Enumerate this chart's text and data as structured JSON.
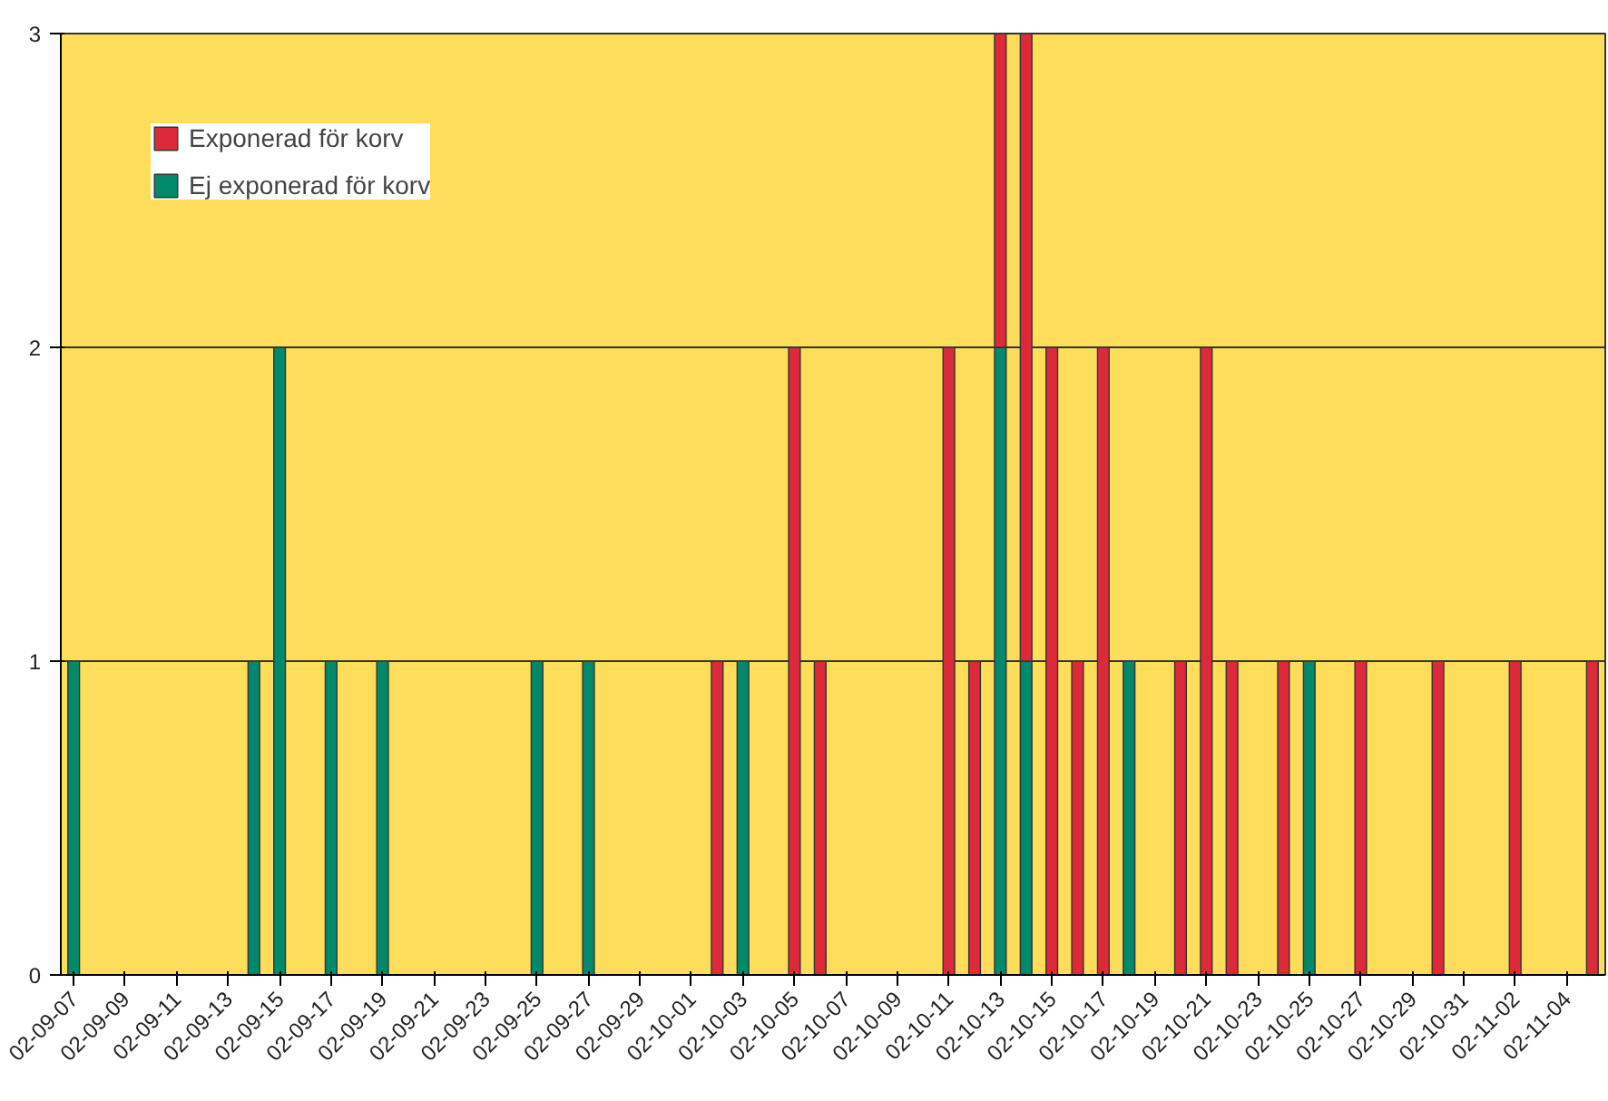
{
  "chart_data": {
    "type": "bar",
    "stacked": true,
    "categories": [
      "02-09-07",
      null,
      "02-09-09",
      null,
      "02-09-11",
      null,
      "02-09-13",
      null,
      "02-09-15",
      null,
      "02-09-17",
      null,
      "02-09-19",
      null,
      "02-09-21",
      null,
      "02-09-23",
      null,
      "02-09-25",
      null,
      "02-09-27",
      null,
      "02-09-29",
      null,
      "02-10-01",
      null,
      "02-10-03",
      null,
      "02-10-05",
      null,
      "02-10-07",
      null,
      "02-10-09",
      null,
      "02-10-11",
      null,
      "02-10-13",
      null,
      "02-10-15",
      null,
      "02-10-17",
      null,
      "02-10-19",
      null,
      "02-10-21",
      null,
      "02-10-23",
      null,
      "02-10-25",
      null,
      "02-10-27",
      null,
      "02-10-29",
      null,
      "02-10-31",
      null,
      "02-11-02",
      null,
      "02-11-04",
      null
    ],
    "series": [
      {
        "name": "Ej exponerad för korv",
        "color": "#00896a",
        "values": [
          1,
          0,
          0,
          0,
          0,
          0,
          0,
          1,
          2,
          0,
          1,
          0,
          1,
          0,
          0,
          0,
          0,
          0,
          1,
          0,
          1,
          0,
          0,
          0,
          0,
          0,
          1,
          0,
          0,
          0,
          0,
          0,
          0,
          0,
          0,
          0,
          2,
          1,
          0,
          0,
          0,
          1,
          0,
          0,
          0,
          0,
          0,
          0,
          1,
          0,
          0,
          0,
          0,
          0,
          0,
          0,
          0,
          0,
          0,
          0
        ]
      },
      {
        "name": "Exponerad för korv",
        "color": "#dd2a3a",
        "values": [
          0,
          0,
          0,
          0,
          0,
          0,
          0,
          0,
          0,
          0,
          0,
          0,
          0,
          0,
          0,
          0,
          0,
          0,
          0,
          0,
          0,
          0,
          0,
          0,
          0,
          1,
          0,
          0,
          2,
          1,
          0,
          0,
          0,
          0,
          2,
          1,
          1,
          2,
          2,
          1,
          2,
          0,
          0,
          1,
          2,
          1,
          0,
          1,
          0,
          0,
          1,
          0,
          0,
          1,
          0,
          0,
          1,
          0,
          0,
          1
        ]
      }
    ],
    "ylim": [
      0,
      3
    ],
    "yticks": [
      0,
      1,
      2,
      3
    ],
    "grid": "y",
    "legend": "top left"
  }
}
